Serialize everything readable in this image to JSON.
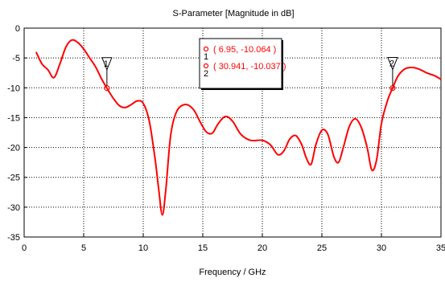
{
  "chart_data": {
    "type": "line",
    "title": "S-Parameter [Magnitude in dB]",
    "xlabel": "Frequency / GHz",
    "ylabel": "",
    "xlim": [
      0,
      35
    ],
    "ylim": [
      -35,
      0
    ],
    "xticks": [
      0,
      5,
      10,
      15,
      20,
      25,
      30,
      35
    ],
    "yticks": [
      0,
      -5,
      -10,
      -15,
      -20,
      -25,
      -30,
      -35
    ],
    "grid": true,
    "series": [
      {
        "name": "",
        "color": "#ff0000",
        "x": [
          1,
          1.5,
          2,
          2.5,
          3,
          3.5,
          4,
          4.5,
          5,
          5.5,
          6,
          6.5,
          6.95,
          7.5,
          8,
          8.5,
          9,
          9.5,
          10,
          10.5,
          11,
          11.3,
          11.6,
          11.9,
          12.3,
          12.8,
          13.5,
          14.2,
          14.8,
          15.3,
          15.8,
          16.3,
          16.9,
          17.5,
          18.2,
          19,
          20,
          20.7,
          21.3,
          21.8,
          22.3,
          22.8,
          23.3,
          23.7,
          24.1,
          24.5,
          25,
          25.5,
          26,
          26.4,
          26.8,
          27.3,
          27.8,
          28.3,
          28.8,
          29.2,
          29.6,
          30,
          30.5,
          30.941,
          31.4,
          32,
          32.6,
          33.2,
          33.8,
          34.5,
          35
        ],
        "y": [
          -4,
          -6,
          -7,
          -8.3,
          -6,
          -3.2,
          -2,
          -2.4,
          -3.5,
          -5,
          -6.5,
          -8.5,
          -10.064,
          -11.8,
          -13,
          -13.3,
          -12.8,
          -12.2,
          -12.6,
          -15.5,
          -22,
          -27,
          -31.3,
          -27,
          -18,
          -14,
          -12.8,
          -13.6,
          -15.8,
          -17.4,
          -17.6,
          -16,
          -14.8,
          -15.6,
          -17.8,
          -18.8,
          -18.8,
          -19.6,
          -21.2,
          -20.6,
          -18.6,
          -18,
          -19.5,
          -21.8,
          -22.8,
          -19.5,
          -17.1,
          -17.8,
          -21.5,
          -22.5,
          -20,
          -16.5,
          -15.2,
          -16.6,
          -20,
          -23.8,
          -22,
          -16,
          -12.2,
          -10.037,
          -8,
          -6.8,
          -6.6,
          -6.9,
          -7.5,
          -8,
          -8.6
        ]
      }
    ],
    "markers": [
      {
        "label": "1",
        "x": 6.95,
        "y": -10.064,
        "text": "( 6.95, -10.064 )"
      },
      {
        "label": "2",
        "x": 30.941,
        "y": -10.037,
        "text": "( 30.941, -10.037 )"
      }
    ]
  }
}
